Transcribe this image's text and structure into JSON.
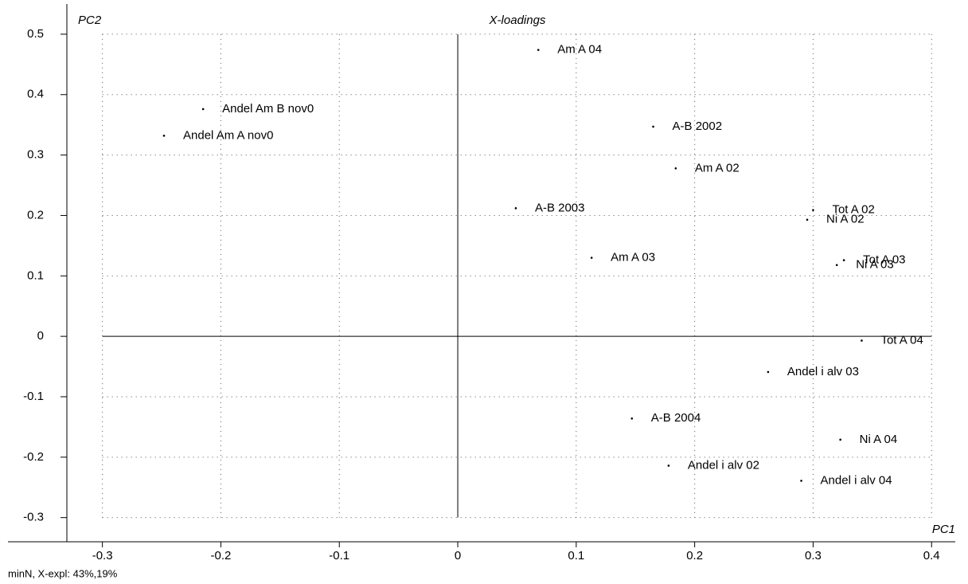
{
  "chart_data": {
    "type": "scatter",
    "title": "X-loadings",
    "x_label": "PC1",
    "y_label": "PC2",
    "footer": "minN, X-expl: 43%,19%",
    "xlim": [
      -0.33,
      0.42
    ],
    "ylim": [
      -0.34,
      0.55
    ],
    "xticks": [
      -0.3,
      -0.2,
      -0.1,
      0,
      0.1,
      0.2,
      0.3,
      0.4
    ],
    "yticks": [
      -0.3,
      -0.2,
      -0.1,
      0,
      0.1,
      0.2,
      0.3,
      0.4,
      0.5
    ],
    "grid": true,
    "color": "#000000",
    "labels": [
      "Am A 04",
      "Andel Am B nov0",
      "Andel Am A nov0",
      "A-B 2002",
      "Am A 02",
      "A-B 2003",
      "Tot A 02",
      "Ni A 02",
      "Am A 03",
      "Tot A 03",
      "Ni A 03",
      "Tot A 04",
      "Andel i alv 03",
      "A-B 2004",
      "Ni A 04",
      "Andel i alv 02",
      "Andel i alv 04"
    ],
    "x": [
      0.068,
      -0.215,
      -0.248,
      0.165,
      0.184,
      0.049,
      0.3,
      0.295,
      0.113,
      0.326,
      0.32,
      0.341,
      0.262,
      0.147,
      0.323,
      0.178,
      0.29
    ],
    "values": [
      0.474,
      0.376,
      0.332,
      0.347,
      0.278,
      0.212,
      0.209,
      0.193,
      0.13,
      0.126,
      0.118,
      -0.007,
      -0.059,
      -0.136,
      -0.171,
      -0.214,
      -0.239
    ]
  }
}
